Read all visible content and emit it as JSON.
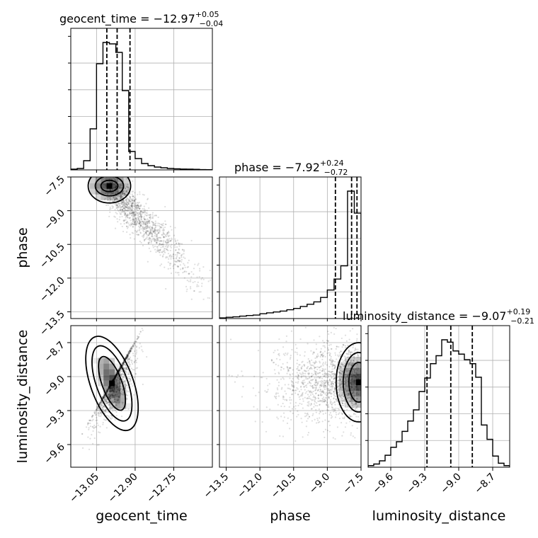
{
  "chart_data": {
    "type": "corner",
    "parameters": [
      "geocent_time",
      "phase",
      "luminosity_distance"
    ],
    "titles": {
      "geocent_time": {
        "name": "geocent_time",
        "median": "−12.97",
        "plus": "+0.05",
        "minus": "−0.04"
      },
      "phase": {
        "name": "phase",
        "median": "−7.92",
        "plus": "+0.24",
        "minus": "−0.72"
      },
      "luminosity_distance": {
        "name": "luminosity_distance",
        "median": "−9.07",
        "plus": "+0.19",
        "minus": "−0.21"
      }
    },
    "ranges": {
      "geocent_time": [
        -13.15,
        -12.6
      ],
      "phase": [
        -13.8,
        -7.5
      ],
      "luminosity_distance": [
        -9.8,
        -8.55
      ]
    },
    "ticks": {
      "geocent_time": [
        -13.05,
        -12.9,
        -12.75
      ],
      "phase": [
        -13.5,
        -12.0,
        -10.5,
        -9.0,
        -7.5
      ],
      "luminosity_distance": [
        -9.6,
        -9.3,
        -9.0,
        -8.7
      ]
    },
    "tick_labels": {
      "geocent_time": [
        "−13.05",
        "−12.90",
        "−12.75"
      ],
      "phase": [
        "−13.5",
        "−12.0",
        "−10.5",
        "−9.0",
        "−7.5"
      ],
      "luminosity_distance": [
        "−9.6",
        "−9.3",
        "−9.0",
        "−8.7"
      ]
    },
    "histograms": {
      "geocent_time": {
        "bin_edges": [
          -13.15,
          -13.125,
          -13.1,
          -13.075,
          -13.05,
          -13.025,
          -13.0,
          -12.975,
          -12.95,
          -12.925,
          -12.9,
          -12.875,
          -12.85,
          -12.825,
          -12.8,
          -12.775,
          -12.75,
          -12.725,
          -12.7,
          -12.675,
          -12.65,
          -12.625,
          -12.6
        ],
        "counts": [
          1,
          2,
          13,
          58,
          150,
          180,
          178,
          166,
          112,
          26,
          16,
          9,
          6,
          4,
          3,
          2,
          1.5,
          1.2,
          1,
          0.8,
          0.4,
          0.3
        ]
      },
      "phase": {
        "bin_edges": [
          -13.8,
          -13.5,
          -13.2,
          -12.9,
          -12.6,
          -12.3,
          -12.0,
          -11.7,
          -11.4,
          -11.1,
          -10.8,
          -10.5,
          -10.2,
          -9.9,
          -9.6,
          -9.3,
          -9.0,
          -8.7,
          -8.4,
          -8.1,
          -7.8,
          -7.5
        ],
        "counts": [
          0.3,
          0.6,
          0.8,
          1.1,
          1.4,
          1.6,
          2.2,
          2.6,
          3.0,
          3.4,
          4.0,
          4.6,
          5.5,
          6.5,
          7.6,
          9.6,
          13.0,
          18.0,
          24.0,
          58.0,
          48.0
        ]
      },
      "luminosity_distance": {
        "bin_edges": [
          -9.8,
          -9.75,
          -9.7,
          -9.65,
          -9.6,
          -9.55,
          -9.5,
          -9.45,
          -9.4,
          -9.35,
          -9.3,
          -9.25,
          -9.2,
          -9.15,
          -9.1,
          -9.05,
          -9.0,
          -8.95,
          -8.9,
          -8.85,
          -8.8,
          -8.75,
          -8.7,
          -8.65,
          -8.6,
          -8.55
        ],
        "counts": [
          2,
          4,
          8,
          15,
          25,
          32,
          45,
          58,
          72,
          95,
          112,
          130,
          140,
          160,
          157,
          146,
          142,
          135,
          130,
          113,
          53,
          35,
          14,
          5,
          2
        ]
      }
    },
    "quantiles": {
      "geocent_time": [
        -13.01,
        -12.97,
        -12.92
      ],
      "phase": [
        -8.64,
        -7.92,
        -7.68
      ],
      "luminosity_distance": [
        -9.28,
        -9.07,
        -8.88
      ]
    },
    "correlations": {
      "geocent_time-phase": {
        "peak": [
          -13.0,
          -7.9
        ],
        "trend": "negative"
      },
      "geocent_time-luminosity_distance": {
        "peak": [
          -12.99,
          -9.06
        ],
        "trend": "positive"
      },
      "phase-luminosity_distance": {
        "peak": [
          -7.6,
          -9.05
        ],
        "trend": "none"
      }
    },
    "grid": true,
    "colors": {
      "density": "#000000",
      "grid": "#b0b0b0"
    }
  }
}
